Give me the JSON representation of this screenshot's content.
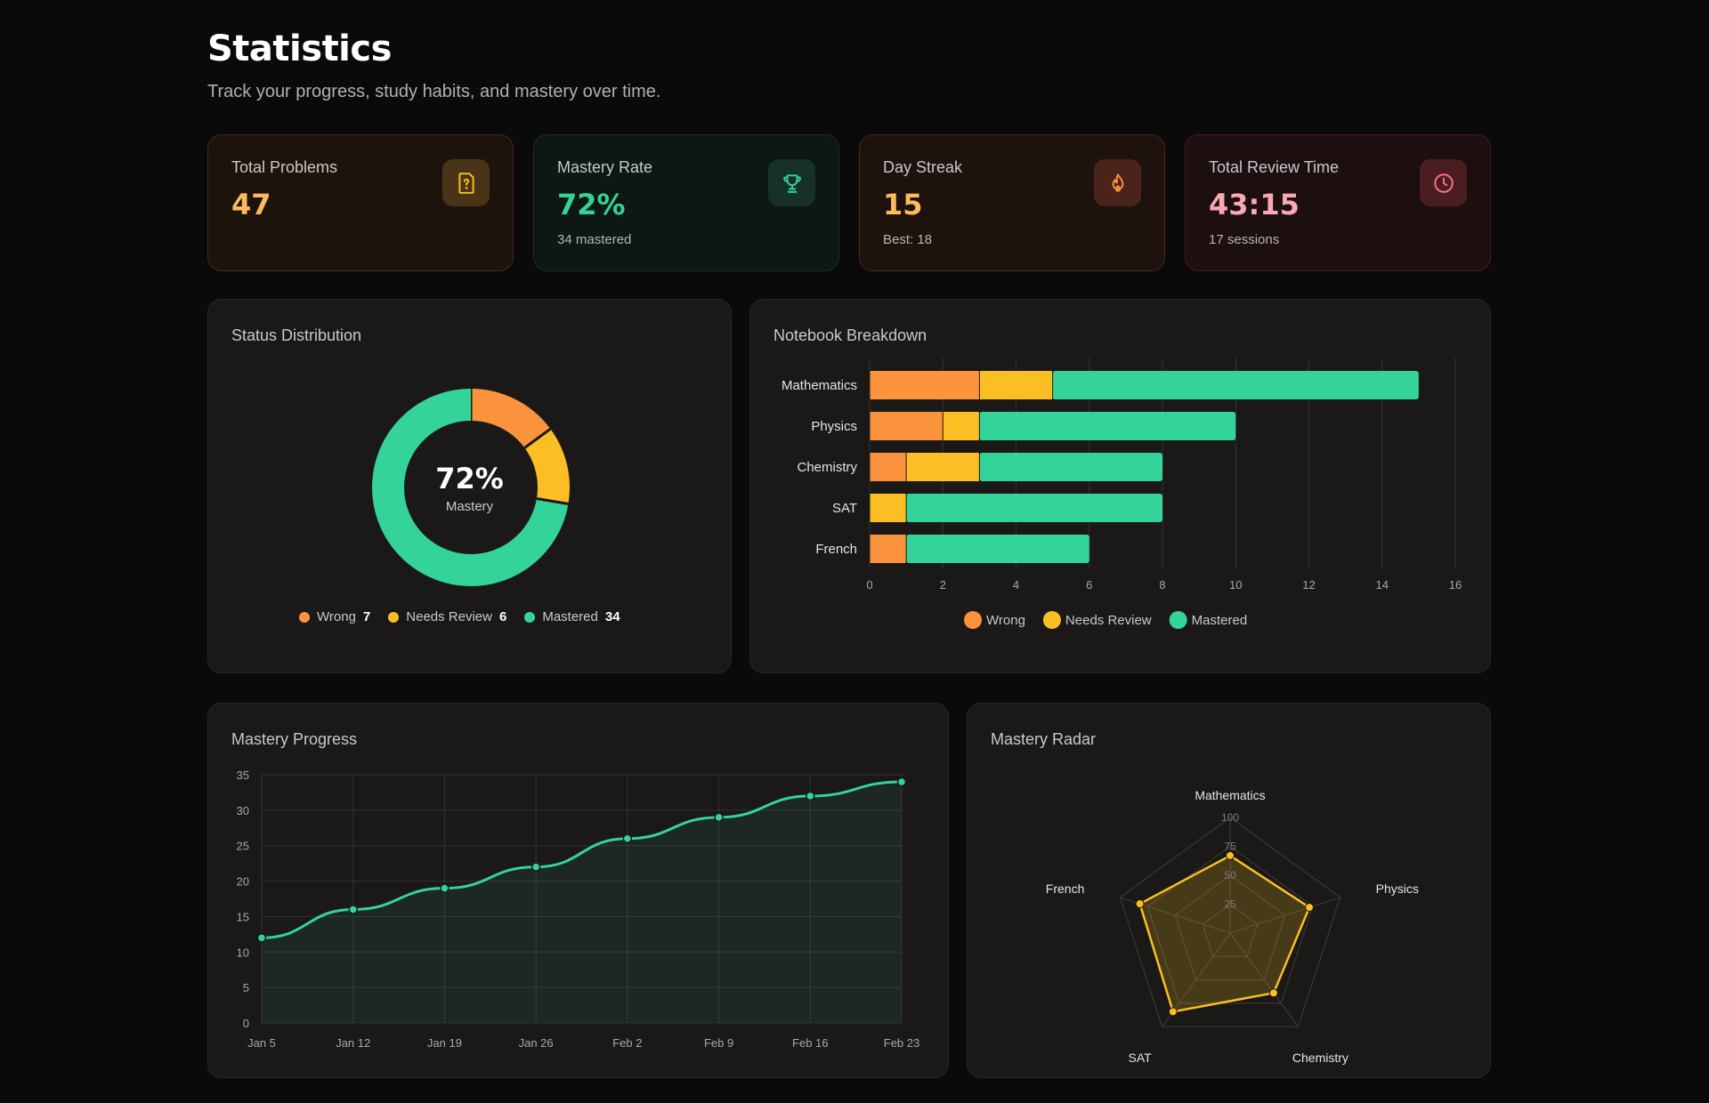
{
  "header": {
    "title": "Statistics",
    "subtitle": "Track your progress, study habits, and mastery over time."
  },
  "cards": [
    {
      "label": "Total Problems",
      "value": "47",
      "sub": "",
      "icon": "question-document-icon"
    },
    {
      "label": "Mastery Rate",
      "value": "72%",
      "sub": "34 mastered",
      "icon": "trophy-icon"
    },
    {
      "label": "Day Streak",
      "value": "15",
      "sub": "Best: 18",
      "icon": "flame-icon"
    },
    {
      "label": "Total Review Time",
      "value": "43:15",
      "sub": "17 sessions",
      "icon": "clock-icon"
    }
  ],
  "colors": {
    "wrong": "#fb923c",
    "needs_review": "#fbbf24",
    "mastered": "#34d399"
  },
  "status_panel": {
    "title": "Status Distribution",
    "center_value": "72%",
    "center_label": "Mastery",
    "legend": [
      {
        "label": "Wrong",
        "count": "7"
      },
      {
        "label": "Needs Review",
        "count": "6"
      },
      {
        "label": "Mastered",
        "count": "34"
      }
    ]
  },
  "notebook_panel": {
    "title": "Notebook Breakdown"
  },
  "progress_panel": {
    "title": "Mastery Progress"
  },
  "radar_panel": {
    "title": "Mastery Radar"
  },
  "chart_data": [
    {
      "type": "pie",
      "title": "Status Distribution",
      "categories": [
        "Wrong",
        "Needs Review",
        "Mastered"
      ],
      "values": [
        7,
        6,
        34
      ]
    },
    {
      "type": "bar",
      "orientation": "horizontal",
      "stacked": true,
      "title": "Notebook Breakdown",
      "categories": [
        "Mathematics",
        "Physics",
        "Chemistry",
        "SAT",
        "French"
      ],
      "series": [
        {
          "name": "Wrong",
          "values": [
            3,
            2,
            1,
            0,
            1
          ]
        },
        {
          "name": "Needs Review",
          "values": [
            2,
            1,
            2,
            1,
            0
          ]
        },
        {
          "name": "Mastered",
          "values": [
            10,
            7,
            5,
            7,
            5
          ]
        }
      ],
      "xlim": [
        0,
        16
      ],
      "xticks": [
        "0",
        "2",
        "4",
        "6",
        "8",
        "10",
        "12",
        "14",
        "16"
      ],
      "legend": "bottom",
      "grid": true
    },
    {
      "type": "line",
      "title": "Mastery Progress",
      "x": [
        "Jan 5",
        "Jan 12",
        "Jan 19",
        "Jan 26",
        "Feb 2",
        "Feb 9",
        "Feb 16",
        "Feb 23"
      ],
      "values": [
        12,
        16,
        19,
        22,
        26,
        29,
        32,
        34
      ],
      "ylim": [
        0,
        35
      ],
      "yticks": [
        "0",
        "5",
        "10",
        "15",
        "20",
        "25",
        "30",
        "35"
      ],
      "grid": true,
      "fill": true
    },
    {
      "type": "radar",
      "title": "Mastery Radar",
      "categories": [
        "Mathematics",
        "Physics",
        "Chemistry",
        "SAT",
        "French"
      ],
      "values": [
        67,
        72,
        64,
        84,
        82
      ],
      "range": [
        0,
        100
      ],
      "ticks": [
        "25",
        "50",
        "75",
        "100"
      ]
    }
  ]
}
